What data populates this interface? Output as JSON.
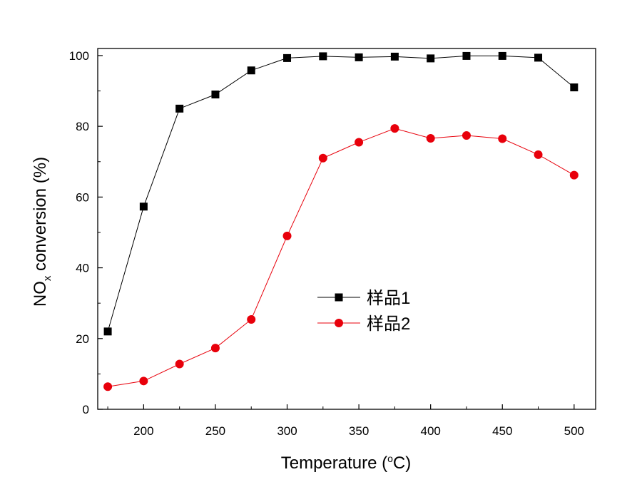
{
  "chart_data": {
    "type": "line",
    "title": "",
    "xlabel_parts": [
      "Temperature (",
      "o",
      "C)"
    ],
    "ylabel_parts": [
      "NO",
      "x",
      " conversion (%)"
    ],
    "x": [
      175,
      200,
      225,
      250,
      275,
      300,
      325,
      350,
      375,
      400,
      425,
      450,
      475,
      500
    ],
    "xlim": [
      168,
      515
    ],
    "ylim": [
      0,
      102
    ],
    "xticks": [
      200,
      250,
      300,
      350,
      400,
      450,
      500
    ],
    "yticks": [
      0,
      20,
      40,
      60,
      80,
      100
    ],
    "grid": false,
    "legend_position": "center",
    "series": [
      {
        "name": "样品1",
        "marker": "square",
        "color": "#000000",
        "values": [
          22,
          57.3,
          85,
          89,
          95.8,
          99.3,
          99.8,
          99.5,
          99.7,
          99.2,
          99.9,
          99.9,
          99.4,
          91
        ]
      },
      {
        "name": "样品2",
        "marker": "circle",
        "color": "#e8000b",
        "values": [
          6.4,
          8,
          12.8,
          17.3,
          25.4,
          49,
          71,
          75.5,
          79.4,
          76.6,
          77.4,
          76.5,
          72,
          66.2
        ]
      }
    ]
  }
}
